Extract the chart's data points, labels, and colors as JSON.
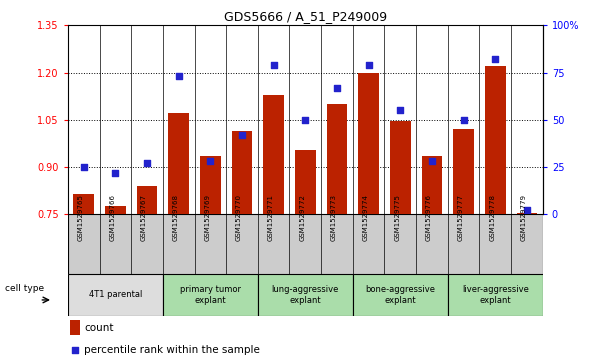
{
  "title": "GDS5666 / A_51_P249009",
  "samples": [
    "GSM1529765",
    "GSM1529766",
    "GSM1529767",
    "GSM1529768",
    "GSM1529769",
    "GSM1529770",
    "GSM1529771",
    "GSM1529772",
    "GSM1529773",
    "GSM1529774",
    "GSM1529775",
    "GSM1529776",
    "GSM1529777",
    "GSM1529778",
    "GSM1529779"
  ],
  "counts": [
    0.815,
    0.775,
    0.84,
    1.07,
    0.935,
    1.015,
    1.13,
    0.955,
    1.1,
    1.2,
    1.045,
    0.935,
    1.02,
    1.22,
    0.755
  ],
  "percentiles": [
    25,
    22,
    27,
    73,
    28,
    42,
    79,
    50,
    67,
    79,
    55,
    28,
    50,
    82,
    2
  ],
  "ylim_left": [
    0.75,
    1.35
  ],
  "ylim_right": [
    0,
    100
  ],
  "yticks_left": [
    0.75,
    0.9,
    1.05,
    1.2,
    1.35
  ],
  "yticks_right": [
    0,
    25,
    50,
    75,
    100
  ],
  "bar_color": "#bb2200",
  "dot_color": "#2222cc",
  "cell_groups": [
    {
      "label": "4T1 parental",
      "start": 0,
      "end": 2,
      "color": "#dddddd"
    },
    {
      "label": "primary tumor\nexplant",
      "start": 3,
      "end": 5,
      "color": "#aaddaa"
    },
    {
      "label": "lung-aggressive\nexplant",
      "start": 6,
      "end": 8,
      "color": "#aaddaa"
    },
    {
      "label": "bone-aggressive\nexplant",
      "start": 9,
      "end": 11,
      "color": "#aaddaa"
    },
    {
      "label": "liver-aggressive\nexplant",
      "start": 12,
      "end": 14,
      "color": "#aaddaa"
    }
  ],
  "sample_bg_color": "#cccccc",
  "legend_count_label": "count",
  "legend_pct_label": "percentile rank within the sample"
}
